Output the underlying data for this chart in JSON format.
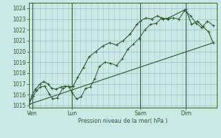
{
  "bg_color": "#cce8e6",
  "line_color": "#2d5a2d",
  "grid_color": "#9fc8c4",
  "axis_color": "#2d5a2d",
  "ylabel_text": "Pression niveau de la mer( hPa )",
  "yticks": [
    1015,
    1016,
    1017,
    1018,
    1019,
    1020,
    1021,
    1022,
    1023,
    1024
  ],
  "ylim": [
    1014.8,
    1024.5
  ],
  "xlim": [
    0,
    16.5
  ],
  "day_labels": [
    "Ven",
    "Lun",
    "Sam",
    "Dim"
  ],
  "day_positions": [
    0.3,
    3.8,
    9.8,
    13.8
  ],
  "vline_positions": [
    0.3,
    3.8,
    9.8,
    13.8
  ],
  "series1_x": [
    0.0,
    0.4,
    0.7,
    1.0,
    1.4,
    1.8,
    2.1,
    2.5,
    3.0,
    3.5,
    3.8,
    4.2,
    4.6,
    5.0,
    5.4,
    5.8,
    6.2,
    6.7,
    7.2,
    7.7,
    8.2,
    8.7,
    9.2,
    9.7,
    10.2,
    10.7,
    11.2,
    11.7,
    12.2,
    12.7,
    13.2,
    13.7,
    14.2,
    14.7,
    15.2,
    15.7,
    16.2
  ],
  "series1_y": [
    1015.1,
    1015.9,
    1016.4,
    1016.7,
    1016.8,
    1016.1,
    1015.6,
    1015.7,
    1016.6,
    1016.8,
    1016.2,
    1015.6,
    1015.8,
    1016.6,
    1016.7,
    1017.5,
    1018.6,
    1019.0,
    1018.9,
    1018.7,
    1019.3,
    1020.2,
    1020.7,
    1021.2,
    1022.0,
    1022.5,
    1022.6,
    1023.1,
    1023.0,
    1023.1,
    1023.0,
    1023.8,
    1023.3,
    1022.6,
    1022.2,
    1022.8,
    1022.4
  ],
  "series2_x": [
    0.0,
    0.3,
    0.6,
    1.0,
    1.3,
    1.7,
    2.0,
    2.4,
    2.8,
    3.2,
    3.6,
    3.9,
    4.3,
    4.8,
    5.3,
    5.9,
    6.5,
    7.1,
    7.7,
    8.3,
    8.9,
    9.5,
    9.8,
    10.3,
    10.8,
    11.3,
    11.8,
    12.3,
    13.8,
    14.3,
    14.8,
    15.3,
    15.8,
    16.2
  ],
  "series2_y": [
    1015.1,
    1016.0,
    1016.5,
    1017.0,
    1017.2,
    1017.0,
    1016.6,
    1016.5,
    1016.7,
    1016.8,
    1016.7,
    1016.8,
    1017.6,
    1018.5,
    1019.5,
    1020.0,
    1020.5,
    1020.8,
    1020.6,
    1021.0,
    1021.6,
    1022.5,
    1022.8,
    1023.1,
    1023.0,
    1023.3,
    1023.0,
    1023.1,
    1023.9,
    1022.5,
    1022.8,
    1022.3,
    1021.8,
    1020.8
  ],
  "series3_x": [
    0.0,
    16.2
  ],
  "series3_y": [
    1015.1,
    1020.8
  ]
}
